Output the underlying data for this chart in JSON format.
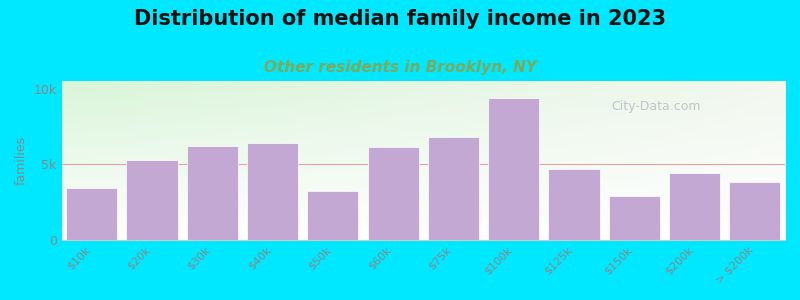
{
  "title": "Distribution of median family income in 2023",
  "subtitle": "Other residents in Brooklyn, NY",
  "ylabel": "families",
  "categories": [
    "$10k",
    "$20k",
    "$30k",
    "$40k",
    "$50k",
    "$60k",
    "$75k",
    "$100k",
    "$125k",
    "$150k",
    "$200k",
    "> $200k"
  ],
  "values": [
    3400,
    5300,
    6200,
    6400,
    3200,
    6100,
    6800,
    9400,
    4700,
    2900,
    4400,
    3800
  ],
  "bar_color": "#c4a8d4",
  "background_outer": "#00e8ff",
  "background_plot_left_top": "#daf0da",
  "background_plot_right_bottom": "#f5f5f0",
  "title_fontsize": 15,
  "title_fontweight": "bold",
  "subtitle_fontsize": 11,
  "subtitle_color": "#7aaa5a",
  "ylabel_color": "#888888",
  "tick_color": "#888888",
  "yticks": [
    0,
    5000,
    10000
  ],
  "ytick_labels": [
    "0",
    "5k",
    "10k"
  ],
  "ylim": [
    0,
    10500
  ],
  "hline_y": 5000,
  "hline_color": "#e8a0a0",
  "watermark": "City-Data.com",
  "watermark_color": "#b0b8c0",
  "watermark_alpha": 0.8
}
